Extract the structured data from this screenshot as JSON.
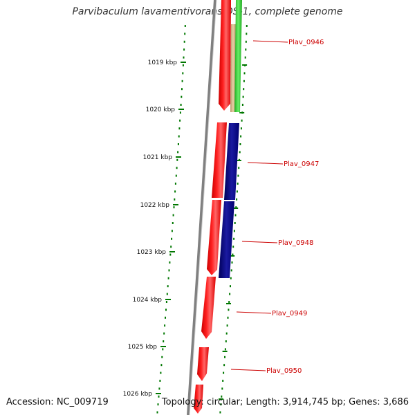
{
  "title": "Parvibaculum lavamentivorans DS-1, complete genome",
  "ticks": [
    {
      "label": "1019 kbp"
    },
    {
      "label": "1020 kbp"
    },
    {
      "label": "1021 kbp"
    },
    {
      "label": "1022 kbp"
    },
    {
      "label": "1023 kbp"
    },
    {
      "label": "1024 kbp"
    },
    {
      "label": "1025 kbp"
    },
    {
      "label": "1026 kbp"
    }
  ],
  "genes": [
    {
      "label": "Plav_0946"
    },
    {
      "label": "Plav_0947"
    },
    {
      "label": "Plav_0948"
    },
    {
      "label": "Plav_0949"
    },
    {
      "label": "Plav_0950"
    }
  ],
  "colors": {
    "cds": "#ff0000",
    "green_feature": "#33cc33",
    "blue_feature": "#000080",
    "tan_feature": "#d2b48c",
    "backbone": "#808080",
    "tick": "#007700",
    "gene_label": "#cc0000"
  },
  "footer": {
    "accession": "Accession: NC_009719",
    "summary": "Topology: circular; Length: 3,914,745 bp; Genes: 3,686"
  }
}
